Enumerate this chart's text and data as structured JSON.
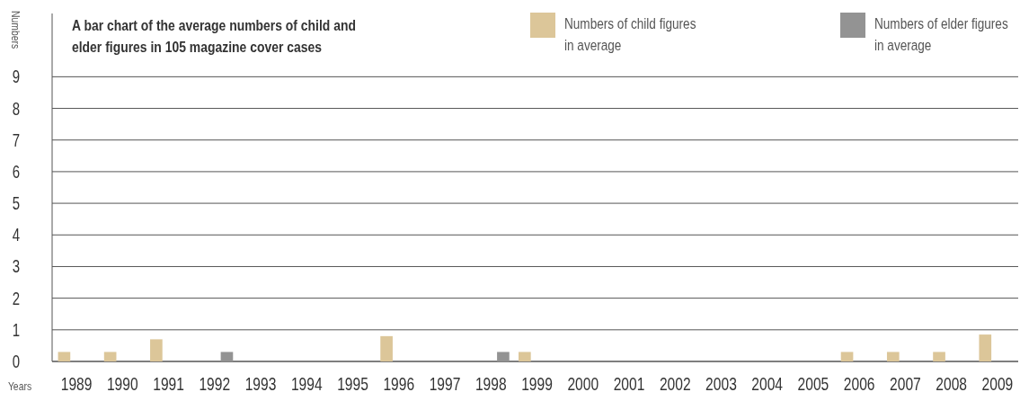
{
  "chart_data": {
    "type": "bar",
    "title": "A bar chart of the average numbers of child and elder figures in 105 magazine cover cases",
    "xlabel": "Years",
    "ylabel": "Numbers",
    "categories": [
      "1989",
      "1990",
      "1991",
      "1992",
      "1993",
      "1994",
      "1995",
      "1996",
      "1997",
      "1998",
      "1999",
      "2000",
      "2001",
      "2002",
      "2003",
      "2004",
      "2005",
      "2006",
      "2007",
      "2008",
      "2009"
    ],
    "series": [
      {
        "name": "Numbers of child figures in average",
        "color": "#dcc699",
        "values": [
          0.3,
          0.3,
          0.7,
          0,
          0,
          0,
          0,
          0.8,
          0,
          0,
          0.3,
          0,
          0,
          0,
          0,
          0,
          0,
          0.3,
          0.3,
          0.3,
          0.85
        ]
      },
      {
        "name": "Numbers of elder figures in average",
        "color": "#939393",
        "values": [
          0,
          0,
          0,
          0.3,
          0,
          0,
          0,
          0,
          0,
          0.3,
          0,
          0,
          0,
          0,
          0,
          0,
          0,
          0,
          0,
          0,
          0
        ]
      }
    ],
    "ylim": [
      0,
      11
    ],
    "yticks": [
      0,
      1,
      2,
      3,
      4,
      5,
      6,
      7,
      8,
      9
    ],
    "grid": "y",
    "legend": "top right"
  }
}
